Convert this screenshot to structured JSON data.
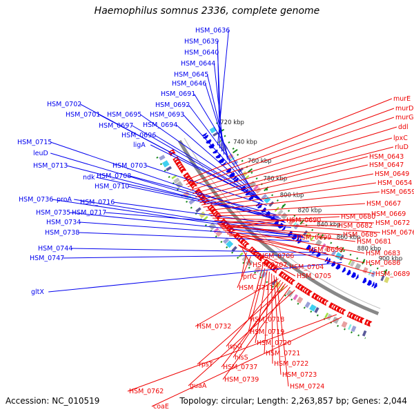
{
  "header": {
    "title": "Haemophilus somnus 2336, complete genome"
  },
  "footer": {
    "accession": "Accession: NC_010519",
    "summary": "Topology: circular; Length: 2,263,857 bp; Genes: 2,044"
  },
  "colors": {
    "forward": "#0000ee",
    "reverse": "#ee0000",
    "backbone": "#888888",
    "tick": "#1a8a1a"
  },
  "kbp_ticks": [
    {
      "label": "720 kbp",
      "value": 720
    },
    {
      "label": "740 kbp",
      "value": 740
    },
    {
      "label": "760 kbp",
      "value": 760
    },
    {
      "label": "780 kbp",
      "value": 780
    },
    {
      "label": "800 kbp",
      "value": 800
    },
    {
      "label": "820 kbp",
      "value": 820
    },
    {
      "label": "840 kbp",
      "value": 840
    },
    {
      "label": "860 kbp",
      "value": 860
    },
    {
      "label": "880 kbp",
      "value": 880
    },
    {
      "label": "900 kbp",
      "value": 900
    }
  ],
  "forward_genes": [
    {
      "label": "HSM_0636",
      "kbp": 728
    },
    {
      "label": "HSM_0639",
      "kbp": 731
    },
    {
      "label": "HSM_0640",
      "kbp": 734
    },
    {
      "label": "HSM_0644",
      "kbp": 737
    },
    {
      "label": "HSM_0645",
      "kbp": 742
    },
    {
      "label": "HSM_0646",
      "kbp": 745
    },
    {
      "label": "HSM_0691",
      "kbp": 773
    },
    {
      "label": "HSM_0692",
      "kbp": 775
    },
    {
      "label": "HSM_0693",
      "kbp": 777
    },
    {
      "label": "HSM_0694",
      "kbp": 779
    },
    {
      "label": "HSM_0702",
      "kbp": 786
    },
    {
      "label": "HSM_0701",
      "kbp": 785
    },
    {
      "label": "HSM_0695",
      "kbp": 781
    },
    {
      "label": "HSM_0697",
      "kbp": 783
    },
    {
      "label": "HSM_0696",
      "kbp": 782
    },
    {
      "label": "ligA",
      "kbp": 784
    },
    {
      "label": "HSM_0715",
      "kbp": 809
    },
    {
      "label": "leuD",
      "kbp": 810
    },
    {
      "label": "HSM_0713",
      "kbp": 808
    },
    {
      "label": "HSM_0703",
      "kbp": 790
    },
    {
      "label": "ndk",
      "kbp": 803
    },
    {
      "label": "HSM_0708",
      "kbp": 801
    },
    {
      "label": "HSM_0710",
      "kbp": 805
    },
    {
      "label": "HSM_0736",
      "kbp": 828
    },
    {
      "label": "proA",
      "kbp": 826
    },
    {
      "label": "HSM_0716",
      "kbp": 814
    },
    {
      "label": "HSM_0735",
      "kbp": 827
    },
    {
      "label": "HSM_0717",
      "kbp": 816
    },
    {
      "label": "HSM_0734",
      "kbp": 829
    },
    {
      "label": "HSM_0738",
      "kbp": 834
    },
    {
      "label": "HSM_0744",
      "kbp": 850
    },
    {
      "label": "HSM_0747",
      "kbp": 853
    },
    {
      "label": "gltX",
      "kbp": 865
    }
  ],
  "reverse_genes": [
    {
      "label": "murE",
      "kbp": 736
    },
    {
      "label": "murD",
      "kbp": 739
    },
    {
      "label": "murG",
      "kbp": 741
    },
    {
      "label": "ddl",
      "kbp": 744
    },
    {
      "label": "lpxC",
      "kbp": 747
    },
    {
      "label": "rluD",
      "kbp": 750
    },
    {
      "label": "HSM_0643",
      "kbp": 753
    },
    {
      "label": "HSM_0647",
      "kbp": 755
    },
    {
      "label": "HSM_0649",
      "kbp": 757
    },
    {
      "label": "HSM_0654",
      "kbp": 759
    },
    {
      "label": "HSM_0659",
      "kbp": 762
    },
    {
      "label": "HSM_0667",
      "kbp": 765
    },
    {
      "label": "HSM_0669",
      "kbp": 767
    },
    {
      "label": "HSM_0672",
      "kbp": 769
    },
    {
      "label": "HSM_0676",
      "kbp": 771
    },
    {
      "label": "HSM_0680",
      "kbp": 774
    },
    {
      "label": "HSM_0690",
      "kbp": 779
    },
    {
      "label": "HSM_0682",
      "kbp": 776
    },
    {
      "label": "HSM_0685",
      "kbp": 777
    },
    {
      "label": "HSM_0681",
      "kbp": 775
    },
    {
      "label": "HSM_0699",
      "kbp": 786
    },
    {
      "label": "HSM_0698",
      "kbp": 784
    },
    {
      "label": "HSM_0683",
      "kbp": 778
    },
    {
      "label": "HSM_0686",
      "kbp": 780
    },
    {
      "label": "HSM_0689",
      "kbp": 782
    },
    {
      "label": "HSM_0706",
      "kbp": 797
    },
    {
      "label": "HSM_0707",
      "kbp": 799
    },
    {
      "label": "HSM_0704",
      "kbp": 795
    },
    {
      "label": "HSM_0705",
      "kbp": 796
    },
    {
      "label": "prfC",
      "kbp": 803
    },
    {
      "label": "HSM_0711",
      "kbp": 807
    },
    {
      "label": "HSM_0718",
      "kbp": 818
    },
    {
      "label": "HSM_0719",
      "kbp": 820
    },
    {
      "label": "HSM_0720",
      "kbp": 822
    },
    {
      "label": "HSM_0721",
      "kbp": 824
    },
    {
      "label": "HSM_0732",
      "kbp": 832
    },
    {
      "label": "ispG",
      "kbp": 834
    },
    {
      "label": "HSM_0722",
      "kbp": 826
    },
    {
      "label": "hisS",
      "kbp": 836
    },
    {
      "label": "rpsT",
      "kbp": 840
    },
    {
      "label": "HSM_0737",
      "kbp": 838
    },
    {
      "label": "HSM_0723",
      "kbp": 828
    },
    {
      "label": "HSM_0739",
      "kbp": 842
    },
    {
      "label": "guaA",
      "kbp": 846
    },
    {
      "label": "HSM_0724",
      "kbp": 830
    },
    {
      "label": "HSM_0762",
      "kbp": 880
    },
    {
      "label": "coaE",
      "kbp": 884
    }
  ]
}
